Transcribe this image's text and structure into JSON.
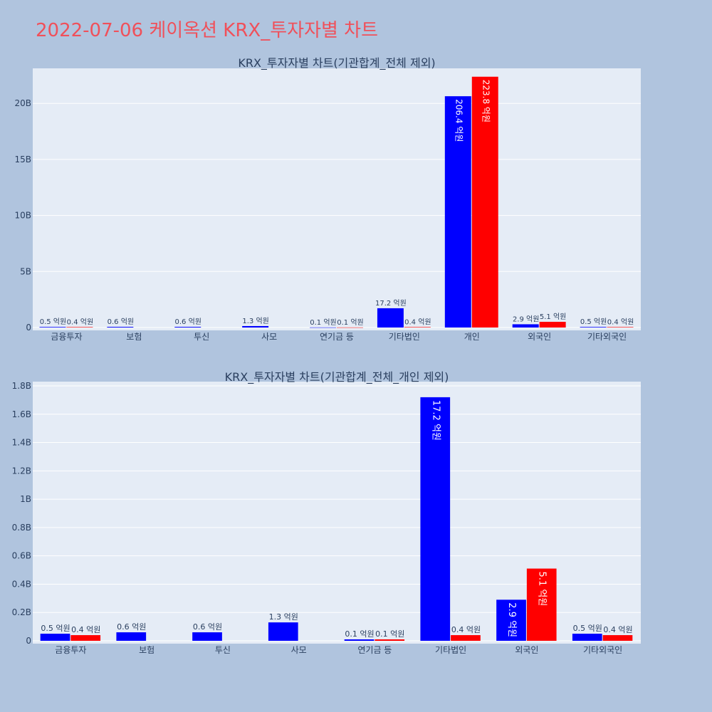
{
  "title": "2022-07-06 케이옥션 KRX_투자자별 차트",
  "colors": {
    "series_a": "#0000ff",
    "series_b": "#ff0000",
    "title": "#f0505a"
  },
  "chart_data": [
    {
      "type": "bar",
      "title": "KRX_투자자별 차트(기관합계_전체 제외)",
      "categories": [
        "금융투자",
        "보험",
        "투신",
        "사모",
        "연기금 등",
        "기타법인",
        "개인",
        "외국인",
        "기타외국인"
      ],
      "ylim": [
        0,
        23000000000
      ],
      "yticks": [
        0,
        5000000000,
        10000000000,
        15000000000,
        20000000000
      ],
      "ytick_labels": [
        "0",
        "5B",
        "10B",
        "15B",
        "20B"
      ],
      "grid": true,
      "series": [
        {
          "color": "#0000ff",
          "values": [
            50000000,
            60000000,
            60000000,
            130000000,
            10000000,
            1720000000,
            20640000000,
            290000000,
            50000000
          ],
          "labels": [
            "0.5 억원",
            "0.6 억원",
            "0.6 억원",
            "1.3 억원",
            "0.1 억원",
            "17.2 억원",
            "206.4 억원",
            "2.9 억원",
            "0.5 억원"
          ]
        },
        {
          "color": "#ff0000",
          "values": [
            40000000,
            0,
            0,
            0,
            10000000,
            40000000,
            22380000000,
            510000000,
            40000000
          ],
          "labels": [
            "0.4 억원",
            "",
            "",
            "",
            "0.1 억원",
            "0.4 억원",
            "223.8 억원",
            "5.1 억원",
            "0.4 억원"
          ]
        }
      ]
    },
    {
      "type": "bar",
      "title": "KRX_투자자별 차트(기관합계_전체_개인 제외)",
      "categories": [
        "금융투자",
        "보험",
        "투신",
        "사모",
        "연기금 등",
        "기타법인",
        "외국인",
        "기타외국인"
      ],
      "ylim": [
        0,
        1820000000
      ],
      "yticks": [
        0,
        200000000,
        400000000,
        600000000,
        800000000,
        1000000000,
        1200000000,
        1400000000,
        1600000000,
        1800000000
      ],
      "ytick_labels": [
        "0",
        "0.2B",
        "0.4B",
        "0.6B",
        "0.8B",
        "1B",
        "1.2B",
        "1.4B",
        "1.6B",
        "1.8B"
      ],
      "grid": true,
      "series": [
        {
          "color": "#0000ff",
          "values": [
            50000000,
            60000000,
            60000000,
            130000000,
            10000000,
            1720000000,
            290000000,
            50000000
          ],
          "labels": [
            "0.5 억원",
            "0.6 억원",
            "0.6 억원",
            "1.3 억원",
            "0.1 억원",
            "17.2 억원",
            "2.9 억원",
            "0.5 억원"
          ]
        },
        {
          "color": "#ff0000",
          "values": [
            40000000,
            0,
            0,
            0,
            10000000,
            40000000,
            510000000,
            40000000
          ],
          "labels": [
            "0.4 억원",
            "",
            "",
            "",
            "0.1 억원",
            "0.4 억원",
            "5.1 억원",
            "0.4 억원"
          ]
        }
      ]
    }
  ]
}
